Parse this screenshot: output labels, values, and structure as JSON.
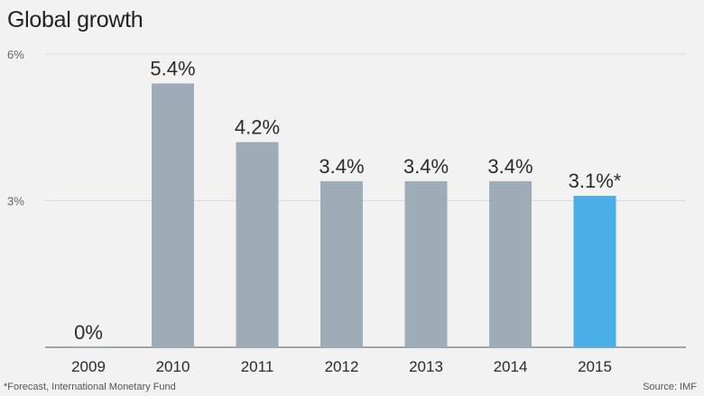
{
  "chart_data": {
    "type": "bar",
    "title": "Global growth",
    "categories": [
      "2009",
      "2010",
      "2011",
      "2012",
      "2013",
      "2014",
      "2015"
    ],
    "values": [
      0,
      5.4,
      4.2,
      3.4,
      3.4,
      3.4,
      3.1
    ],
    "data_labels": [
      "0%",
      "5.4%",
      "4.2%",
      "3.4%",
      "3.4%",
      "3.4%",
      "3.1%*"
    ],
    "y_ticks": [
      {
        "value": 3,
        "label": "3%"
      },
      {
        "value": 6,
        "label": "6%"
      }
    ],
    "ylim": [
      0,
      6
    ],
    "xlabel": "",
    "ylabel": "",
    "grid": true,
    "legend": "none",
    "bar_color": "#9dacb7",
    "highlight_color": "#4aaee8",
    "highlight_index": 6
  },
  "footnote": "*Forecast, International Monetary Fund",
  "source": "Source: IMF"
}
